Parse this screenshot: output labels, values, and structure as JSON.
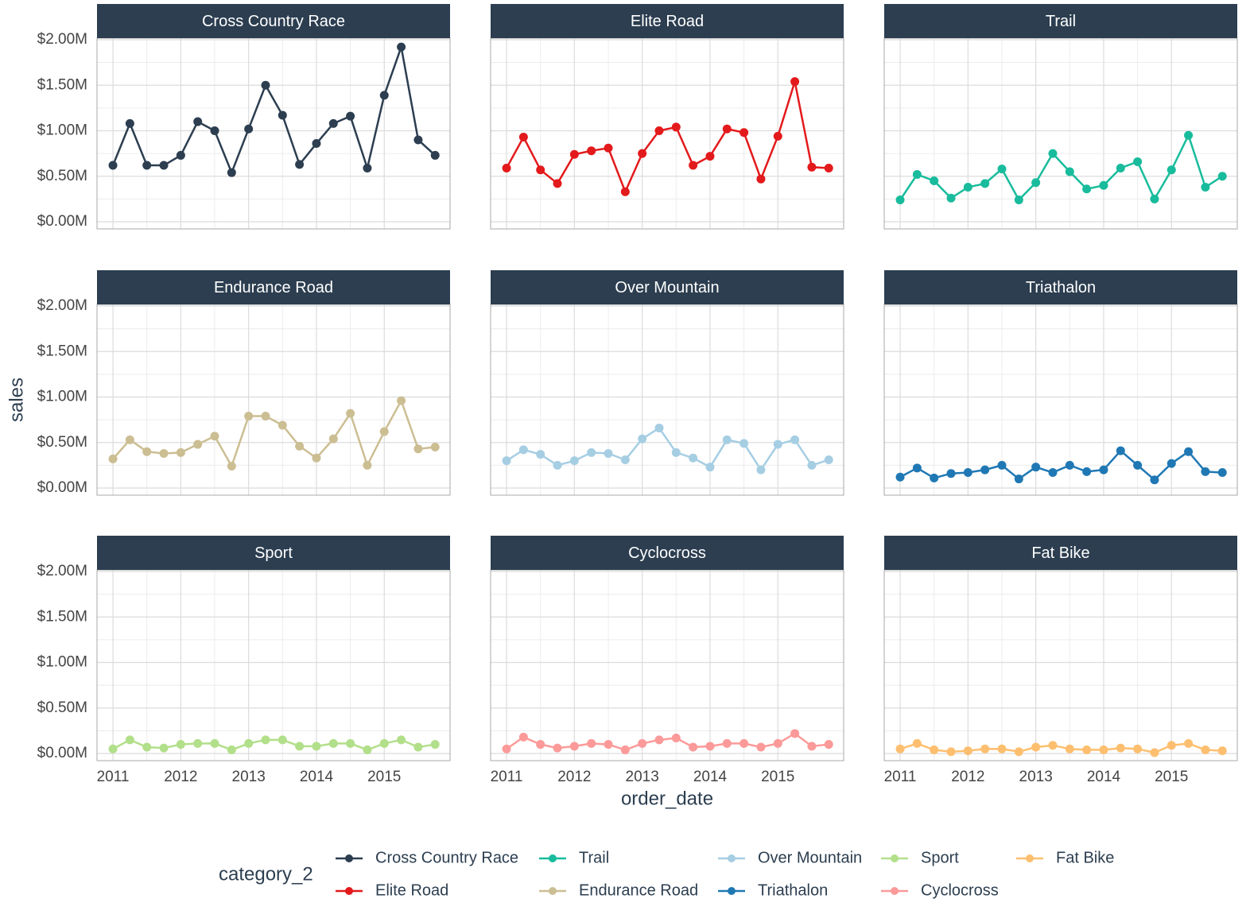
{
  "xlabel": "order_date",
  "ylabel": "sales",
  "legend_title": "category_2",
  "chart_data": [
    {
      "type": "line",
      "title": "Cross Country Race",
      "x": [
        2011,
        2011.25,
        2011.5,
        2011.75,
        2012,
        2012.25,
        2012.5,
        2012.75,
        2013,
        2013.25,
        2013.5,
        2013.75,
        2014,
        2014.25,
        2014.5,
        2014.75,
        2015,
        2015.25,
        2015.5,
        2015.75
      ],
      "series": [
        {
          "name": "Cross Country Race",
          "color": "#2c3e50",
          "values": [
            620000,
            1080000,
            620000,
            620000,
            730000,
            1100000,
            1000000,
            540000,
            1020000,
            1500000,
            1170000,
            630000,
            860000,
            1080000,
            1160000,
            590000,
            1390000,
            1920000,
            900000,
            730000
          ]
        }
      ],
      "xlim": [
        2010.765,
        2015.97
      ],
      "xticks": [
        2011,
        2012,
        2013,
        2014,
        2015
      ],
      "ylim": [
        -78500,
        2017500
      ],
      "yticks": [
        {
          "value": 0,
          "label": "$0.00M"
        },
        {
          "value": 500000,
          "label": "$0.50M"
        },
        {
          "value": 1000000,
          "label": "$1.00M"
        },
        {
          "value": 1500000,
          "label": "$1.50M"
        },
        {
          "value": 2000000,
          "label": "$2.00M"
        }
      ],
      "grid": true
    },
    {
      "type": "line",
      "title": "Elite Road",
      "x": [
        2011,
        2011.25,
        2011.5,
        2011.75,
        2012,
        2012.25,
        2012.5,
        2012.75,
        2013,
        2013.25,
        2013.5,
        2013.75,
        2014,
        2014.25,
        2014.5,
        2014.75,
        2015,
        2015.25,
        2015.5,
        2015.75
      ],
      "series": [
        {
          "name": "Elite Road",
          "color": "#e31a1c",
          "values": [
            590000,
            930000,
            570000,
            420000,
            740000,
            780000,
            810000,
            330000,
            750000,
            1000000,
            1040000,
            620000,
            720000,
            1020000,
            980000,
            470000,
            940000,
            1540000,
            600000,
            590000
          ]
        }
      ],
      "xlim": [
        2010.765,
        2015.97
      ],
      "xticks": [
        2011,
        2012,
        2013,
        2014,
        2015
      ],
      "ylim": [
        -78500,
        2017500
      ],
      "yticks": [
        {
          "value": 0,
          "label": "$0.00M"
        },
        {
          "value": 500000,
          "label": "$0.50M"
        },
        {
          "value": 1000000,
          "label": "$1.00M"
        },
        {
          "value": 1500000,
          "label": "$1.50M"
        },
        {
          "value": 2000000,
          "label": "$2.00M"
        }
      ],
      "grid": true
    },
    {
      "type": "line",
      "title": "Trail",
      "x": [
        2011,
        2011.25,
        2011.5,
        2011.75,
        2012,
        2012.25,
        2012.5,
        2012.75,
        2013,
        2013.25,
        2013.5,
        2013.75,
        2014,
        2014.25,
        2014.5,
        2014.75,
        2015,
        2015.25,
        2015.5,
        2015.75
      ],
      "series": [
        {
          "name": "Trail",
          "color": "#18bc9c",
          "values": [
            240000,
            520000,
            450000,
            260000,
            380000,
            420000,
            580000,
            240000,
            430000,
            750000,
            550000,
            360000,
            400000,
            590000,
            660000,
            250000,
            570000,
            950000,
            380000,
            500000
          ]
        }
      ],
      "xlim": [
        2010.765,
        2015.97
      ],
      "xticks": [
        2011,
        2012,
        2013,
        2014,
        2015
      ],
      "ylim": [
        -78500,
        2017500
      ],
      "yticks": [
        {
          "value": 0,
          "label": "$0.00M"
        },
        {
          "value": 500000,
          "label": "$0.50M"
        },
        {
          "value": 1000000,
          "label": "$1.00M"
        },
        {
          "value": 1500000,
          "label": "$1.50M"
        },
        {
          "value": 2000000,
          "label": "$2.00M"
        }
      ],
      "grid": true
    },
    {
      "type": "line",
      "title": "Endurance Road",
      "x": [
        2011,
        2011.25,
        2011.5,
        2011.75,
        2012,
        2012.25,
        2012.5,
        2012.75,
        2013,
        2013.25,
        2013.5,
        2013.75,
        2014,
        2014.25,
        2014.5,
        2014.75,
        2015,
        2015.25,
        2015.5,
        2015.75
      ],
      "series": [
        {
          "name": "Endurance Road",
          "color": "#ccbe93",
          "values": [
            320000,
            530000,
            400000,
            380000,
            390000,
            480000,
            570000,
            240000,
            790000,
            790000,
            690000,
            460000,
            330000,
            540000,
            820000,
            250000,
            620000,
            960000,
            430000,
            450000
          ]
        }
      ],
      "xlim": [
        2010.765,
        2015.97
      ],
      "xticks": [
        2011,
        2012,
        2013,
        2014,
        2015
      ],
      "ylim": [
        -78500,
        2017500
      ],
      "yticks": [
        {
          "value": 0,
          "label": "$0.00M"
        },
        {
          "value": 500000,
          "label": "$0.50M"
        },
        {
          "value": 1000000,
          "label": "$1.00M"
        },
        {
          "value": 1500000,
          "label": "$1.50M"
        },
        {
          "value": 2000000,
          "label": "$2.00M"
        }
      ],
      "grid": true
    },
    {
      "type": "line",
      "title": "Over Mountain",
      "x": [
        2011,
        2011.25,
        2011.5,
        2011.75,
        2012,
        2012.25,
        2012.5,
        2012.75,
        2013,
        2013.25,
        2013.5,
        2013.75,
        2014,
        2014.25,
        2014.5,
        2014.75,
        2015,
        2015.25,
        2015.5,
        2015.75
      ],
      "series": [
        {
          "name": "Over Mountain",
          "color": "#a6cee3",
          "values": [
            300000,
            420000,
            370000,
            250000,
            300000,
            390000,
            380000,
            310000,
            540000,
            660000,
            390000,
            330000,
            230000,
            530000,
            490000,
            200000,
            480000,
            530000,
            250000,
            310000
          ]
        }
      ],
      "xlim": [
        2010.765,
        2015.97
      ],
      "xticks": [
        2011,
        2012,
        2013,
        2014,
        2015
      ],
      "ylim": [
        -78500,
        2017500
      ],
      "yticks": [
        {
          "value": 0,
          "label": "$0.00M"
        },
        {
          "value": 500000,
          "label": "$0.50M"
        },
        {
          "value": 1000000,
          "label": "$1.00M"
        },
        {
          "value": 1500000,
          "label": "$1.50M"
        },
        {
          "value": 2000000,
          "label": "$2.00M"
        }
      ],
      "grid": true
    },
    {
      "type": "line",
      "title": "Triathalon",
      "x": [
        2011,
        2011.25,
        2011.5,
        2011.75,
        2012,
        2012.25,
        2012.5,
        2012.75,
        2013,
        2013.25,
        2013.5,
        2013.75,
        2014,
        2014.25,
        2014.5,
        2014.75,
        2015,
        2015.25,
        2015.5,
        2015.75
      ],
      "series": [
        {
          "name": "Triathalon",
          "color": "#1f78b4",
          "values": [
            120000,
            220000,
            110000,
            160000,
            170000,
            200000,
            250000,
            100000,
            230000,
            170000,
            250000,
            180000,
            200000,
            410000,
            250000,
            90000,
            270000,
            400000,
            180000,
            170000
          ]
        }
      ],
      "xlim": [
        2010.765,
        2015.97
      ],
      "xticks": [
        2011,
        2012,
        2013,
        2014,
        2015
      ],
      "ylim": [
        -78500,
        2017500
      ],
      "yticks": [
        {
          "value": 0,
          "label": "$0.00M"
        },
        {
          "value": 500000,
          "label": "$0.50M"
        },
        {
          "value": 1000000,
          "label": "$1.00M"
        },
        {
          "value": 1500000,
          "label": "$1.50M"
        },
        {
          "value": 2000000,
          "label": "$2.00M"
        }
      ],
      "grid": true
    },
    {
      "type": "line",
      "title": "Sport",
      "x": [
        2011,
        2011.25,
        2011.5,
        2011.75,
        2012,
        2012.25,
        2012.5,
        2012.75,
        2013,
        2013.25,
        2013.5,
        2013.75,
        2014,
        2014.25,
        2014.5,
        2014.75,
        2015,
        2015.25,
        2015.5,
        2015.75
      ],
      "series": [
        {
          "name": "Sport",
          "color": "#b2df8a",
          "values": [
            50000,
            150000,
            70000,
            60000,
            100000,
            110000,
            110000,
            40000,
            110000,
            150000,
            150000,
            80000,
            80000,
            110000,
            110000,
            40000,
            110000,
            150000,
            70000,
            100000
          ]
        }
      ],
      "xlim": [
        2010.765,
        2015.97
      ],
      "xticks": [
        2011,
        2012,
        2013,
        2014,
        2015
      ],
      "ylim": [
        -78500,
        2017500
      ],
      "yticks": [
        {
          "value": 0,
          "label": "$0.00M"
        },
        {
          "value": 500000,
          "label": "$0.50M"
        },
        {
          "value": 1000000,
          "label": "$1.00M"
        },
        {
          "value": 1500000,
          "label": "$1.50M"
        },
        {
          "value": 2000000,
          "label": "$2.00M"
        }
      ],
      "grid": true
    },
    {
      "type": "line",
      "title": "Cyclocross",
      "x": [
        2011,
        2011.25,
        2011.5,
        2011.75,
        2012,
        2012.25,
        2012.5,
        2012.75,
        2013,
        2013.25,
        2013.5,
        2013.75,
        2014,
        2014.25,
        2014.5,
        2014.75,
        2015,
        2015.25,
        2015.5,
        2015.75
      ],
      "series": [
        {
          "name": "Cyclocross",
          "color": "#fb9a99",
          "values": [
            50000,
            180000,
            100000,
            60000,
            80000,
            110000,
            100000,
            40000,
            110000,
            150000,
            170000,
            70000,
            80000,
            110000,
            110000,
            70000,
            110000,
            220000,
            80000,
            100000
          ]
        }
      ],
      "xlim": [
        2010.765,
        2015.97
      ],
      "xticks": [
        2011,
        2012,
        2013,
        2014,
        2015
      ],
      "ylim": [
        -78500,
        2017500
      ],
      "yticks": [
        {
          "value": 0,
          "label": "$0.00M"
        },
        {
          "value": 500000,
          "label": "$0.50M"
        },
        {
          "value": 1000000,
          "label": "$1.00M"
        },
        {
          "value": 1500000,
          "label": "$1.50M"
        },
        {
          "value": 2000000,
          "label": "$2.00M"
        }
      ],
      "grid": true
    },
    {
      "type": "line",
      "title": "Fat Bike",
      "x": [
        2011,
        2011.25,
        2011.5,
        2011.75,
        2012,
        2012.25,
        2012.5,
        2012.75,
        2013,
        2013.25,
        2013.5,
        2013.75,
        2014,
        2014.25,
        2014.5,
        2014.75,
        2015,
        2015.25,
        2015.5,
        2015.75
      ],
      "series": [
        {
          "name": "Fat Bike",
          "color": "#fdbf6f",
          "values": [
            50000,
            110000,
            40000,
            20000,
            30000,
            50000,
            50000,
            20000,
            70000,
            90000,
            50000,
            40000,
            40000,
            60000,
            50000,
            10000,
            90000,
            110000,
            40000,
            30000
          ]
        }
      ],
      "xlim": [
        2010.765,
        2015.97
      ],
      "xticks": [
        2011,
        2012,
        2013,
        2014,
        2015
      ],
      "ylim": [
        -78500,
        2017500
      ],
      "yticks": [
        {
          "value": 0,
          "label": "$0.00M"
        },
        {
          "value": 500000,
          "label": "$0.50M"
        },
        {
          "value": 1000000,
          "label": "$1.00M"
        },
        {
          "value": 1500000,
          "label": "$1.50M"
        },
        {
          "value": 2000000,
          "label": "$2.00M"
        }
      ],
      "grid": true
    }
  ]
}
